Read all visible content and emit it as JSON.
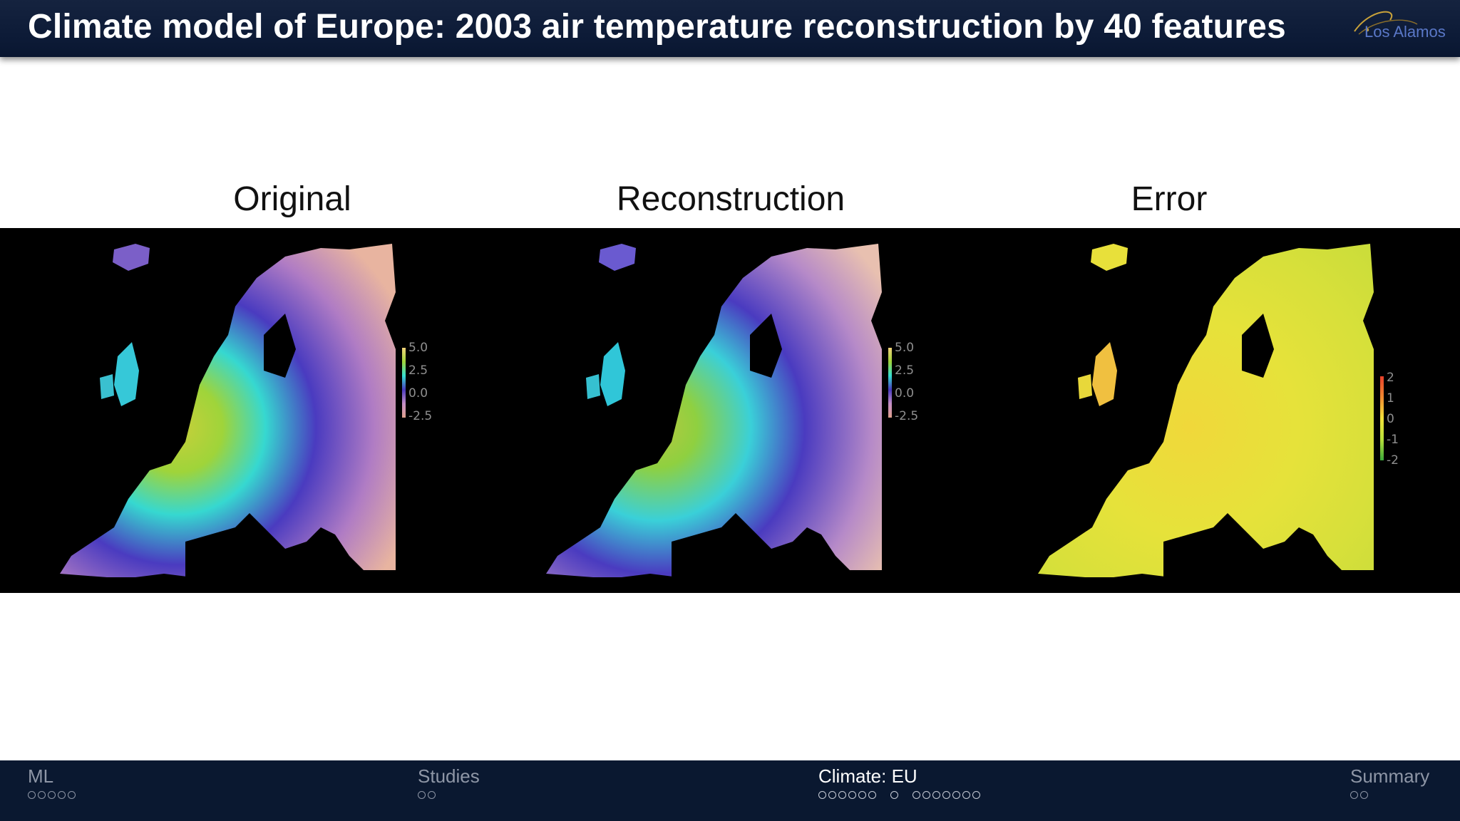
{
  "header": {
    "title": "Climate model of Europe: 2003 air temperature reconstruction by 40 features",
    "logo_text": "Los Alamos"
  },
  "panels": [
    {
      "title": "Original",
      "colorbar_ticks": [
        "5.0",
        "2.5",
        "0.0",
        "-2.5"
      ],
      "colormap": [
        "#f2d27a",
        "#9fd43a",
        "#36e0d0",
        "#4a3bc0",
        "#c58fc7",
        "#e0a08c"
      ]
    },
    {
      "title": "Reconstruction",
      "colorbar_ticks": [
        "5.0",
        "2.5",
        "0.0",
        "-2.5"
      ],
      "colormap": [
        "#f2d27a",
        "#9fd43a",
        "#36e0d0",
        "#4a3bc0",
        "#c58fc7",
        "#e0a08c"
      ]
    },
    {
      "title": "Error",
      "colorbar_ticks": [
        "2",
        "1",
        "0",
        "-1",
        "-2"
      ],
      "colormap": [
        "#e8402a",
        "#f08a30",
        "#f2e23a",
        "#b8e03a",
        "#3aa83a"
      ]
    }
  ],
  "footer": {
    "sections": [
      {
        "label": "ML",
        "dots": [
          5
        ],
        "active": false
      },
      {
        "label": "Studies",
        "dots": [
          2
        ],
        "active": false
      },
      {
        "label": "Climate: EU",
        "dots": [
          6,
          1,
          7
        ],
        "active": true
      },
      {
        "label": "Summary",
        "dots": [
          2
        ],
        "active": false
      }
    ]
  },
  "colors": {
    "header_bg": "#0c1a36",
    "footer_bg": "#0a1830",
    "band_bg": "#000000"
  }
}
